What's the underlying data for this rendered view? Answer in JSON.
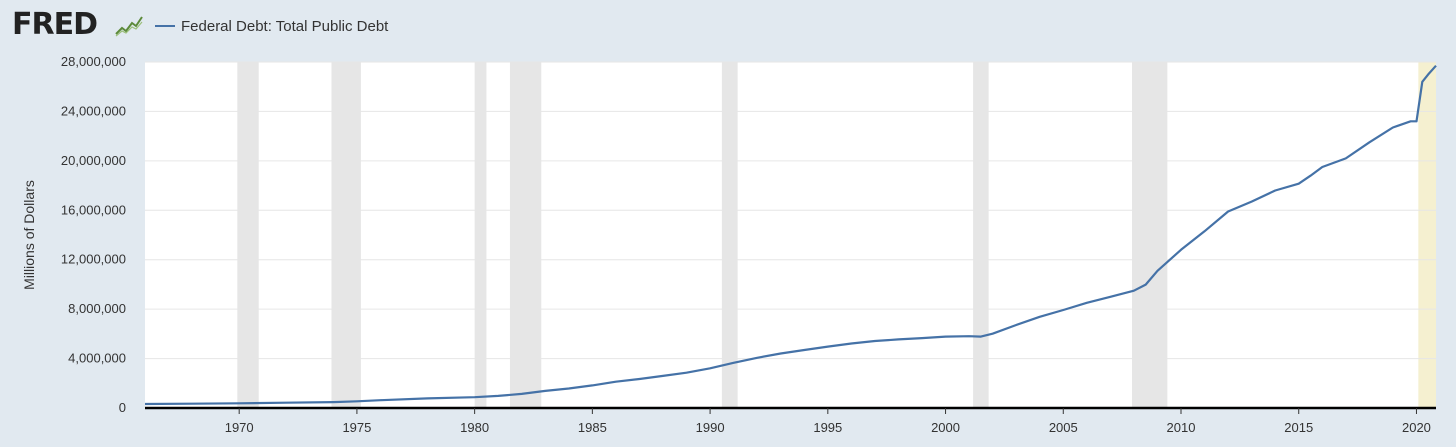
{
  "header": {
    "logo_text": "FRED",
    "legend_label": "Federal Debt: Total Public Debt"
  },
  "colors": {
    "background": "#e1e9f0",
    "plot_bg": "#ffffff",
    "line": "#4572a7",
    "recession": "#e6e6e6",
    "current_shade": "#f5f0d0",
    "grid": "#e6e6e6"
  },
  "chart_data": {
    "type": "line",
    "title": "",
    "xlabel": "",
    "ylabel": "Millions of Dollars",
    "xlim": [
      1966.0,
      2020.83
    ],
    "ylim": [
      0,
      28000000
    ],
    "y_ticks": [
      0,
      4000000,
      8000000,
      12000000,
      16000000,
      20000000,
      24000000,
      28000000
    ],
    "y_tick_labels": [
      "0",
      "4,000,000",
      "8,000,000",
      "12,000,000",
      "16,000,000",
      "20,000,000",
      "24,000,000",
      "28,000,000"
    ],
    "x_ticks": [
      1970,
      1975,
      1980,
      1985,
      1990,
      1995,
      2000,
      2005,
      2010,
      2015,
      2020
    ],
    "x_tick_labels": [
      "1970",
      "1975",
      "1980",
      "1985",
      "1990",
      "1995",
      "2000",
      "2005",
      "2010",
      "2015",
      "2020"
    ],
    "grid": true,
    "legend_position": "top-left",
    "recession_bands": [
      [
        1969.92,
        1970.83
      ],
      [
        1973.92,
        1975.17
      ],
      [
        1980.0,
        1980.5
      ],
      [
        1981.5,
        1982.83
      ],
      [
        1990.5,
        1991.17
      ],
      [
        2001.17,
        2001.83
      ],
      [
        2007.92,
        2009.42
      ],
      [
        2020.08,
        2020.83
      ]
    ],
    "series": [
      {
        "name": "Federal Debt: Total Public Debt",
        "x": [
          1966.0,
          1968.0,
          1970.0,
          1972.0,
          1974.0,
          1975.0,
          1976.0,
          1978.0,
          1980.0,
          1981.0,
          1982.0,
          1983.0,
          1984.0,
          1985.0,
          1986.0,
          1987.0,
          1988.0,
          1989.0,
          1990.0,
          1991.0,
          1992.0,
          1993.0,
          1994.0,
          1995.0,
          1996.0,
          1997.0,
          1998.0,
          1999.0,
          2000.0,
          2001.0,
          2001.5,
          2002.0,
          2003.0,
          2004.0,
          2005.0,
          2006.0,
          2007.0,
          2008.0,
          2008.5,
          2009.0,
          2010.0,
          2011.0,
          2012.0,
          2013.0,
          2014.0,
          2015.0,
          2015.5,
          2016.0,
          2017.0,
          2018.0,
          2019.0,
          2019.75,
          2020.0,
          2020.25,
          2020.5,
          2020.83
        ],
        "values": [
          320000,
          350000,
          380000,
          430000,
          480000,
          540000,
          630000,
          780000,
          870000,
          980000,
          1140000,
          1380000,
          1580000,
          1830000,
          2130000,
          2350000,
          2600000,
          2860000,
          3210000,
          3660000,
          4060000,
          4410000,
          4690000,
          4970000,
          5220000,
          5420000,
          5550000,
          5660000,
          5780000,
          5810000,
          5780000,
          6010000,
          6720000,
          7380000,
          7930000,
          8510000,
          9000000,
          9490000,
          9990000,
          11100000,
          12800000,
          14300000,
          15900000,
          16700000,
          17600000,
          18150000,
          18800000,
          19500000,
          20200000,
          21500000,
          22700000,
          23200000,
          23200000,
          26400000,
          27000000,
          27700000
        ]
      }
    ]
  }
}
